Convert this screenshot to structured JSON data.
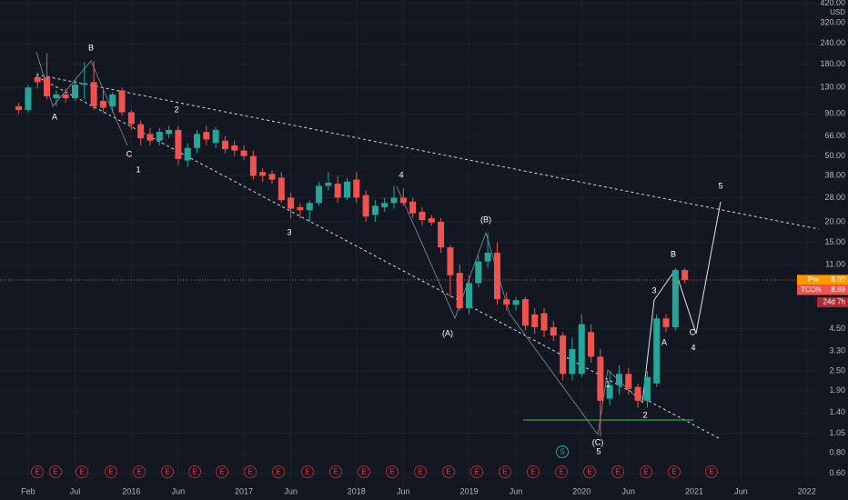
{
  "chart_data": {
    "type": "candlestick",
    "log_scale": true,
    "grid": true,
    "up_color": "#26a69a",
    "down_color": "#ef5350",
    "currency": "USD",
    "countdown": "24d 7h",
    "earnings_label": "E",
    "split_label": "S",
    "price_tags": [
      {
        "name": "Pre",
        "value": 8.9,
        "label": "8.90",
        "color": "#ff9800"
      },
      {
        "name": "TCON",
        "value": 8.89,
        "label": "8.89",
        "color": "#ef5350"
      }
    ],
    "annotations": [
      "B",
      "A",
      "C",
      "1",
      "2",
      "3",
      "4",
      "(B)",
      "(A)",
      "(C)",
      "5",
      "1",
      "2",
      "3",
      "B",
      "A",
      "C",
      "4",
      "5"
    ],
    "xlim": [
      "2014-11",
      "2022-02"
    ],
    "xticks": [
      {
        "value": "2015-02",
        "label": "Feb"
      },
      {
        "value": "2015-07",
        "label": "Jul"
      },
      {
        "value": "2016-01",
        "label": "2016"
      },
      {
        "value": "2016-06",
        "label": "Jun"
      },
      {
        "value": "2017-01",
        "label": "2017"
      },
      {
        "value": "2017-06",
        "label": "Jun"
      },
      {
        "value": "2018-01",
        "label": "2018"
      },
      {
        "value": "2018-06",
        "label": "Jun"
      },
      {
        "value": "2019-01",
        "label": "2019"
      },
      {
        "value": "2019-06",
        "label": "Jun"
      },
      {
        "value": "2020-01",
        "label": "2020"
      },
      {
        "value": "2020-06",
        "label": "Jun"
      },
      {
        "value": "2021-01",
        "label": "2021"
      },
      {
        "value": "2021-06",
        "label": "Jun"
      },
      {
        "value": "2022-01",
        "label": "2022"
      }
    ],
    "ylim": [
      0.52,
      440
    ],
    "yticks": [
      {
        "value": 420,
        "label": "420.00"
      },
      {
        "value": 320,
        "label": "320.00"
      },
      {
        "value": 240,
        "label": "240.00"
      },
      {
        "value": 180,
        "label": "180.00"
      },
      {
        "value": 130,
        "label": "130.00"
      },
      {
        "value": 90,
        "label": "90.00"
      },
      {
        "value": 66,
        "label": "66.00"
      },
      {
        "value": 50,
        "label": "50.00"
      },
      {
        "value": 38,
        "label": "38.00"
      },
      {
        "value": 28,
        "label": "28.00"
      },
      {
        "value": 20,
        "label": "20.00"
      },
      {
        "value": 15,
        "label": "15.00"
      },
      {
        "value": 11,
        "label": "11.00"
      },
      {
        "value": 4.5,
        "label": "4.50"
      },
      {
        "value": 3.3,
        "label": "3.30"
      },
      {
        "value": 2.5,
        "label": "2.50"
      },
      {
        "value": 1.9,
        "label": "1.90"
      },
      {
        "value": 1.4,
        "label": "1.40"
      },
      {
        "value": 1.05,
        "label": "1.05"
      },
      {
        "value": 0.8,
        "label": "0.80"
      },
      {
        "value": 0.6,
        "label": "0.60"
      }
    ],
    "x": [
      "2015-01",
      "2015-02",
      "2015-03",
      "2015-04",
      "2015-05",
      "2015-06",
      "2015-07",
      "2015-08",
      "2015-09",
      "2015-10",
      "2015-11",
      "2015-12",
      "2016-01",
      "2016-02",
      "2016-03",
      "2016-04",
      "2016-05",
      "2016-06",
      "2016-07",
      "2016-08",
      "2016-09",
      "2016-10",
      "2016-11",
      "2016-12",
      "2017-01",
      "2017-02",
      "2017-03",
      "2017-04",
      "2017-05",
      "2017-06",
      "2017-07",
      "2017-08",
      "2017-09",
      "2017-10",
      "2017-11",
      "2017-12",
      "2018-01",
      "2018-02",
      "2018-03",
      "2018-04",
      "2018-05",
      "2018-06",
      "2018-07",
      "2018-08",
      "2018-09",
      "2018-10",
      "2018-11",
      "2018-12",
      "2019-01",
      "2019-02",
      "2019-03",
      "2019-04",
      "2019-05",
      "2019-06",
      "2019-07",
      "2019-08",
      "2019-09",
      "2019-10",
      "2019-11",
      "2019-12",
      "2020-01",
      "2020-02",
      "2020-03",
      "2020-04",
      "2020-05",
      "2020-06",
      "2020-07",
      "2020-08",
      "2020-09",
      "2020-10",
      "2020-11",
      "2020-12"
    ],
    "open": [
      100,
      95,
      150,
      150,
      112,
      118,
      112,
      135,
      140,
      108,
      100,
      125,
      92,
      78,
      68,
      62,
      68,
      72,
      47,
      56,
      70,
      60,
      62,
      58,
      54,
      50,
      40,
      39,
      37,
      28,
      24.5,
      23.5,
      26,
      33,
      34,
      28,
      36,
      29,
      22,
      24.5,
      26,
      28,
      26.5,
      23,
      21,
      20,
      14,
      9.8,
      6,
      8.5,
      11.5,
      13,
      6.8,
      6.3,
      6.8,
      5.5,
      5.6,
      4.6,
      4.1,
      2.4,
      2.4,
      4.3,
      3.05,
      1.7,
      2.05,
      2.4,
      2,
      1.65,
      2.1,
      5.2,
      4.6,
      10.2
    ],
    "high": [
      105,
      135,
      160,
      210,
      125,
      128,
      145,
      185,
      188,
      125,
      122,
      130,
      95,
      82,
      74,
      74,
      76,
      76,
      60,
      72,
      76,
      75,
      66,
      62,
      58,
      54,
      42,
      41,
      40,
      30,
      26,
      27,
      35,
      40,
      38,
      37,
      40,
      31,
      27,
      28,
      33,
      32,
      28,
      24.5,
      22,
      21,
      14.5,
      11,
      9.5,
      12.5,
      17,
      15,
      7.5,
      7,
      7,
      6,
      6,
      5,
      4.3,
      4,
      5.5,
      4.8,
      3.4,
      2.5,
      2.7,
      2.6,
      2.1,
      2.5,
      5.5,
      5.5,
      10.5,
      10.5
    ],
    "low": [
      90,
      92,
      128,
      110,
      100,
      105,
      108,
      110,
      95,
      92,
      92,
      88,
      72,
      58,
      58,
      58,
      64,
      44,
      43,
      52,
      58,
      56,
      52,
      50,
      47,
      36,
      35,
      34,
      26,
      21,
      21,
      20,
      25,
      31,
      26,
      27,
      26,
      20,
      20,
      23,
      24,
      25,
      21,
      19,
      19,
      13,
      7,
      5.8,
      5.5,
      8,
      10.5,
      6.3,
      5.8,
      5.8,
      4.4,
      4.2,
      4,
      3.8,
      2.2,
      2.2,
      2.3,
      2.8,
      1.0,
      1.55,
      1.8,
      1.8,
      1.5,
      1.5,
      2.0,
      4.3,
      4.4,
      8.5
    ],
    "close": [
      95,
      130,
      140,
      115,
      118,
      112,
      135,
      138,
      100,
      98,
      118,
      92,
      78,
      64,
      62,
      70,
      72,
      48,
      56,
      68,
      63,
      72,
      55,
      54,
      50,
      38,
      38,
      36,
      27,
      24,
      23.5,
      26,
      33,
      34.5,
      28,
      35,
      28,
      21.5,
      25,
      26,
      28,
      26,
      22.5,
      20.5,
      19.8,
      14,
      9.5,
      6,
      8.5,
      11.5,
      13,
      6.8,
      6.3,
      6.7,
      4.7,
      4.6,
      4.4,
      4.1,
      2.4,
      3.4,
      4.8,
      3.05,
      1.65,
      2.05,
      2.4,
      1.95,
      1.65,
      2.3,
      5.2,
      4.6,
      10.2,
      8.9
    ]
  }
}
